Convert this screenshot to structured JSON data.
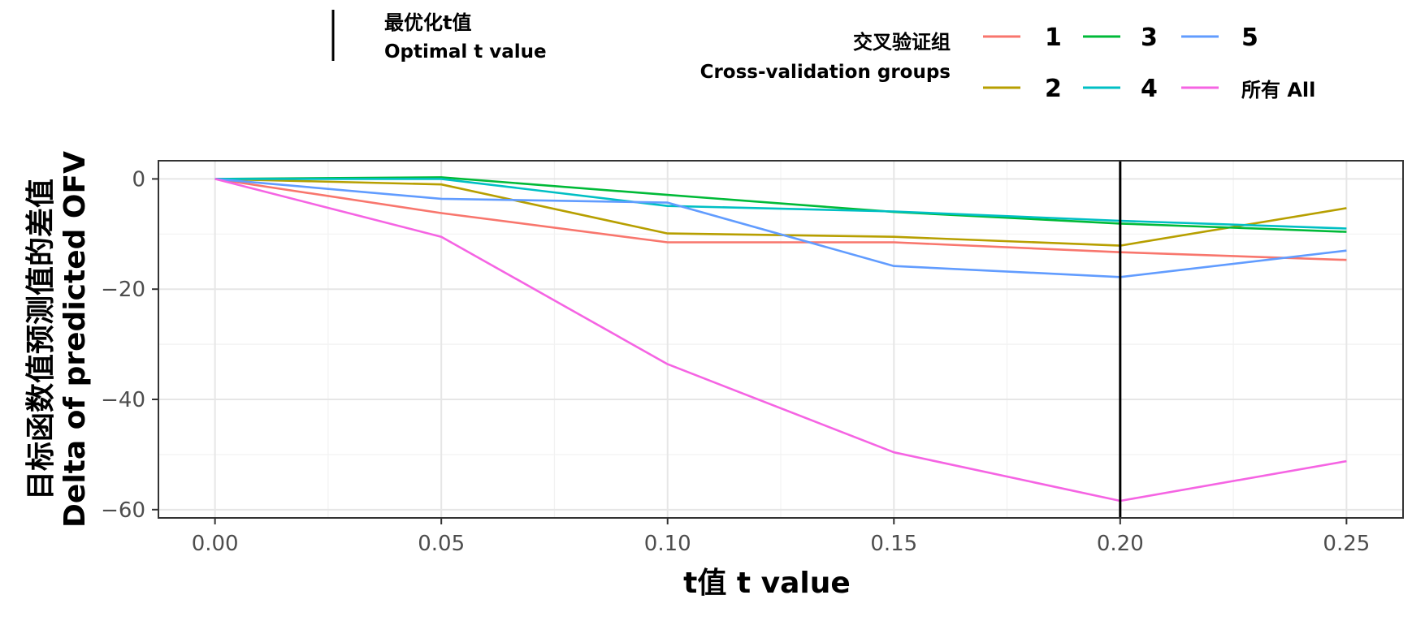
{
  "legend": {
    "optimal_title_cn": "最优化t值",
    "optimal_title_en": "Optimal t value",
    "groups_title_cn": "交叉验证组",
    "groups_title_en": "Cross-validation groups"
  },
  "chart_data": {
    "type": "line",
    "xlabel": "t值 t value",
    "ylabel_cn": "目标函数值预测值的差值",
    "ylabel_en": "Delta of predicted OFV",
    "x": [
      0.0,
      0.05,
      0.1,
      0.15,
      0.2,
      0.25
    ],
    "x_tick_labels": [
      "0.00",
      "0.05",
      "0.10",
      "0.15",
      "0.20",
      "0.25"
    ],
    "y_ticks": [
      0,
      -20,
      -40,
      -60
    ],
    "y_tick_labels": [
      "0",
      "−20",
      "−40",
      "−60"
    ],
    "xlim": [
      -0.0125,
      0.2625
    ],
    "ylim": [
      -61.5,
      3.3
    ],
    "grid": true,
    "legend_position": "top",
    "optimal_t": 0.2,
    "series": [
      {
        "name": "1",
        "color": "#F8766D",
        "values": [
          0,
          -6.2,
          -11.5,
          -11.5,
          -13.3,
          -14.7
        ]
      },
      {
        "name": "2",
        "color": "#B79F00",
        "values": [
          0,
          -1.0,
          -9.9,
          -10.5,
          -12.1,
          -5.3
        ]
      },
      {
        "name": "3",
        "color": "#00BA38",
        "values": [
          0,
          0.3,
          -2.9,
          -6.0,
          -8.1,
          -9.6
        ]
      },
      {
        "name": "4",
        "color": "#00BFC4",
        "values": [
          0,
          0.0,
          -4.9,
          -5.9,
          -7.6,
          -9.0
        ]
      },
      {
        "name": "5",
        "color": "#619CFF",
        "values": [
          0,
          -3.6,
          -4.3,
          -15.8,
          -17.8,
          -13.0
        ]
      },
      {
        "name": "所有 All",
        "color": "#F564E3",
        "values": [
          0,
          -10.5,
          -33.6,
          -49.6,
          -58.4,
          -51.2
        ]
      }
    ]
  }
}
